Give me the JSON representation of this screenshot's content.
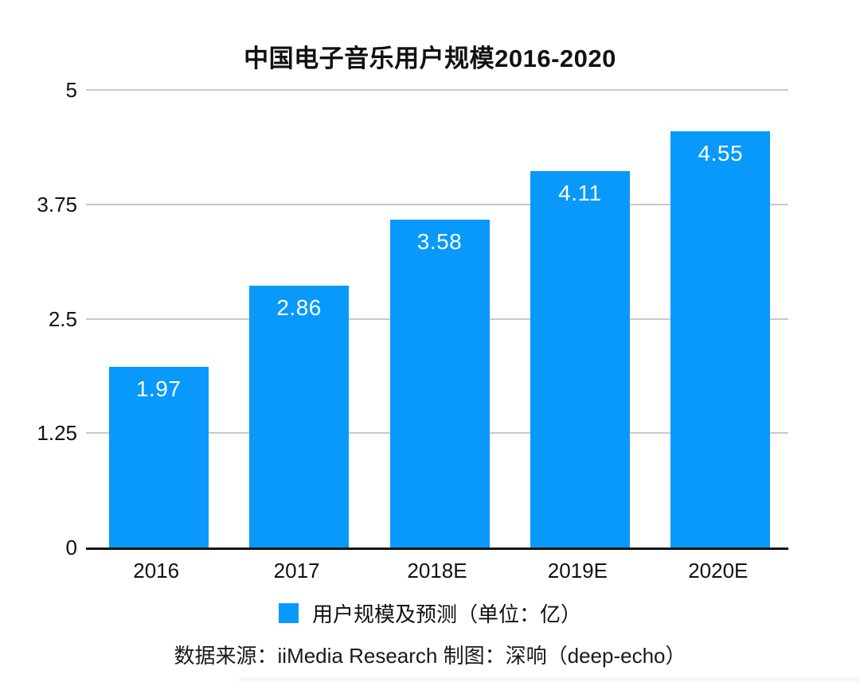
{
  "title": "中国电子音乐用户规模2016-2020",
  "chart_data": {
    "type": "bar",
    "title": "中国电子音乐用户规模2016-2020",
    "categories": [
      "2016",
      "2017",
      "2018E",
      "2019E",
      "2020E"
    ],
    "values": [
      1.97,
      2.86,
      3.58,
      4.11,
      4.55
    ],
    "value_labels": [
      "1.97",
      "2.86",
      "3.58",
      "4.11",
      "4.55"
    ],
    "xlabel": "",
    "ylabel": "",
    "ylim": [
      0,
      5
    ],
    "yticks": [
      0,
      1.25,
      2.5,
      3.75,
      5
    ],
    "ytick_labels": [
      "0",
      "1.25",
      "2.5",
      "3.75",
      "5"
    ],
    "grid": true,
    "legend_position": "bottom",
    "legend_entries": [
      "用户规模及预测（单位：亿）"
    ],
    "bar_color": "#0899fa",
    "value_label_color": "#ffffff",
    "gridline_color": "#c9c9c9",
    "axis_color": "#141414"
  },
  "legend": {
    "label": "用户规模及预测（单位：亿）",
    "swatch_color": "#0899fa"
  },
  "source": {
    "text": "数据来源：iiMedia Research  制图：深响（deep-echo）"
  }
}
